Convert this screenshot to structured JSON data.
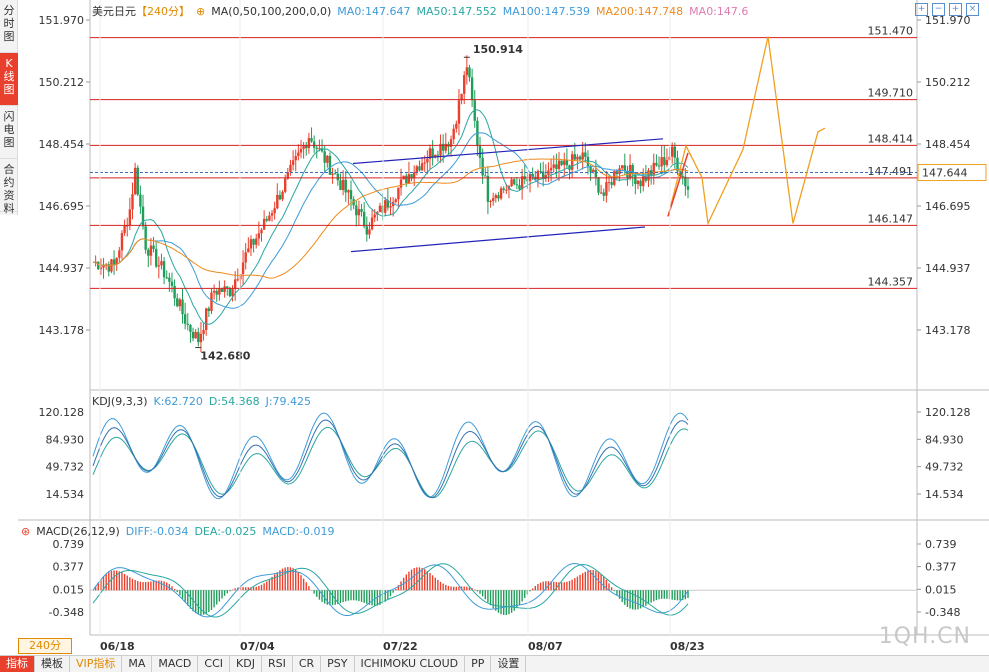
{
  "sidebar": {
    "tabs": [
      {
        "label": "分时图",
        "active": false
      },
      {
        "label": "K线图",
        "active": true
      },
      {
        "label": "闪电图",
        "active": false
      },
      {
        "label": "合约资料",
        "active": false
      }
    ]
  },
  "header": {
    "symbol": "美元日元",
    "period": "【240分】",
    "ma_label": "MA(0,50,100,200,0,0)",
    "ma0": "MA0:147.647",
    "ma50": "MA50:147.552",
    "ma100": "MA100:147.539",
    "ma200": "MA200:147.748",
    "ma0b": "MA0:147.6"
  },
  "price_axis": {
    "ticks": [
      "151.970",
      "150.212",
      "148.454",
      "146.695",
      "144.937",
      "143.178"
    ],
    "current": "147.644"
  },
  "levels": [
    {
      "label": "151.470",
      "value": 151.47
    },
    {
      "label": "149.710",
      "value": 149.71
    },
    {
      "label": "148.414",
      "value": 148.414
    },
    {
      "label": "147.491",
      "value": 147.491
    },
    {
      "label": "146.147",
      "value": 146.147
    },
    {
      "label": "144.357",
      "value": 144.357
    }
  ],
  "annotations": {
    "high": "150.914",
    "low": "142.680"
  },
  "kdj": {
    "title": "KDJ(9,3,3)",
    "k": "K:62.720",
    "d": "D:54.368",
    "j": "J:79.425",
    "ticks": [
      "120.128",
      "84.930",
      "49.732",
      "14.534"
    ]
  },
  "macd": {
    "title": "MACD(26,12,9)",
    "diff": "DIFF:-0.034",
    "dea": "DEA:-0.025",
    "macd": "MACD:-0.019",
    "ticks": [
      "0.739",
      "0.377",
      "0.015",
      "-0.348"
    ]
  },
  "x_axis": {
    "dates": [
      "06/18",
      "07/04",
      "07/22",
      "08/07",
      "08/23"
    ]
  },
  "bottom_tabs": [
    "指标",
    "模板",
    "VIP指标",
    "MA",
    "MACD",
    "CCI",
    "KDJ",
    "RSI",
    "CR",
    "PSY",
    "ICHIMOKU CLOUD",
    "PP",
    "设置"
  ],
  "period_selector": "240分",
  "watermark": "1QH.CN",
  "colors": {
    "up": "#e9402d",
    "down": "#1f9e5a",
    "level": "#d42020",
    "ma50": "#2aa7a0",
    "ma100": "#3f9bd8",
    "ma200": "#f08a1c",
    "trend": "#2323b8",
    "projection": "#f0a020"
  }
}
